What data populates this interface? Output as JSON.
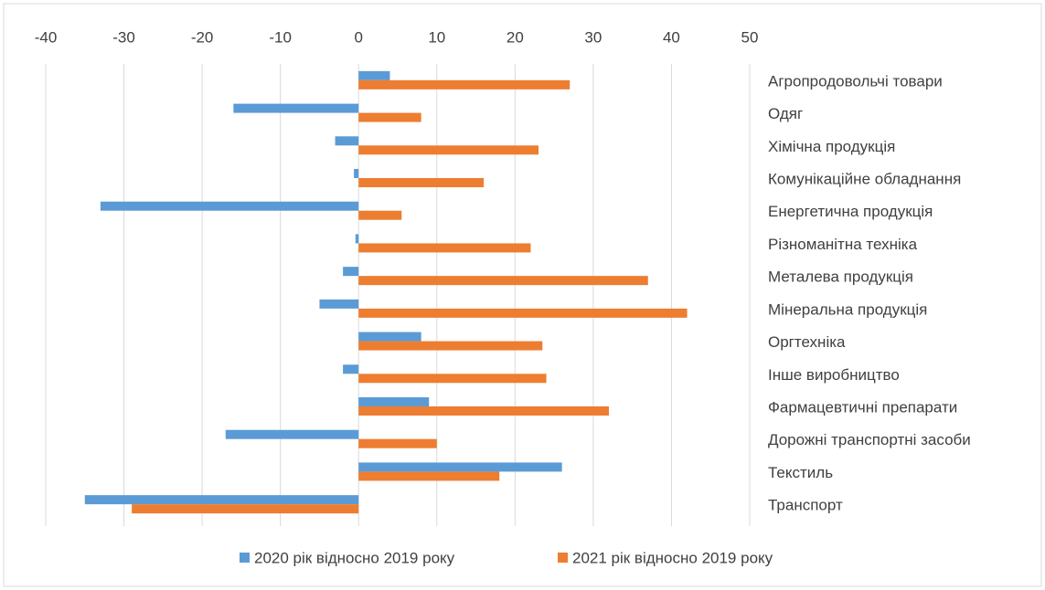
{
  "chart_data": {
    "type": "barh",
    "categories": [
      "Агропродовольчі товари",
      "Одяг",
      "Хімічна продукція",
      "Комунікаційне обладнання",
      "Енергетична продукція",
      "Різноманітна техніка",
      "Металева продукція",
      "Мінеральна продукція",
      "Оргтехніка",
      "Інше виробництво",
      "Фармацевтичні препарати",
      "Дорожні транспортні засоби",
      "Текстиль",
      "Транспорт"
    ],
    "series": [
      {
        "name": "2020 рік відносно 2019 року",
        "color": "#5b9bd5",
        "values": [
          4,
          -16,
          -3,
          -0.6,
          -33,
          -0.4,
          -2,
          -5,
          8,
          -2,
          9,
          -17,
          26,
          -35
        ]
      },
      {
        "name": "2021 рік відносно 2019 року",
        "color": "#ed7d31",
        "values": [
          27,
          8,
          23,
          16,
          5.5,
          22,
          37,
          42,
          23.5,
          24,
          32,
          10,
          18,
          -29
        ]
      }
    ],
    "xlim": [
      -40,
      50
    ],
    "xticks": [
      -40,
      -30,
      -20,
      -10,
      0,
      10,
      20,
      30,
      40,
      50
    ],
    "grid": true,
    "legend": "bottom"
  }
}
